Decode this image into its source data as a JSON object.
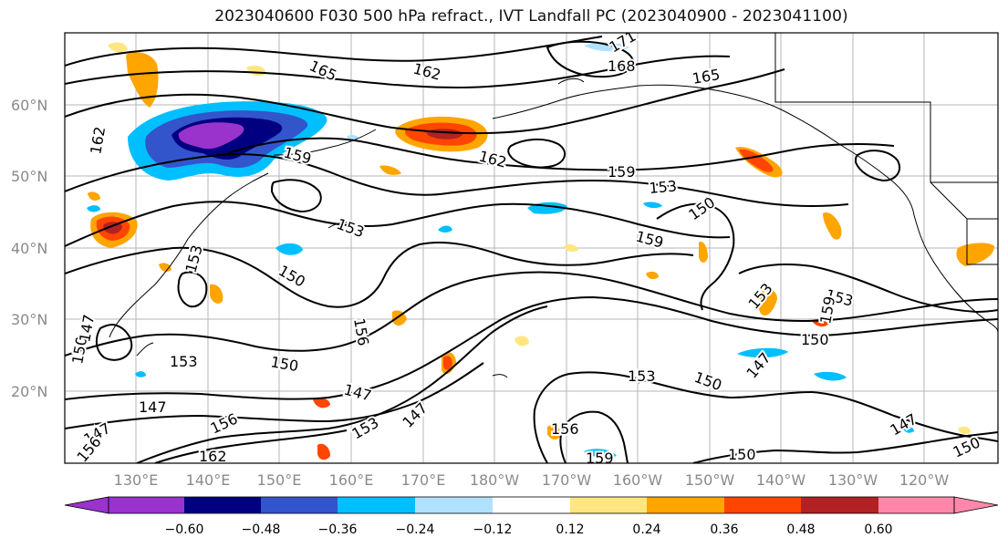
{
  "title": "2023040600 F030 500 hPa refract., IVT Landfall PC (2023040900 - 2023041100)",
  "lat_labels": [
    "60°N",
    "50°N",
    "40°N",
    "30°N",
    "20°N"
  ],
  "lon_labels": [
    "130°E",
    "140°E",
    "150°E",
    "160°E",
    "170°E",
    "180°W",
    "170°W",
    "160°W",
    "150°W",
    "140°W",
    "130°W",
    "120°W"
  ],
  "contour_labels": [
    "165",
    "162",
    "165",
    "159",
    "162",
    "159",
    "162",
    "153",
    "150",
    "153",
    "159",
    "153",
    "150",
    "156",
    "153",
    "150",
    "153",
    "150",
    "147",
    "147",
    "153",
    "147",
    "156",
    "147",
    "153",
    "150",
    "153",
    "159",
    "150",
    "147",
    "156",
    "159",
    "150",
    "147",
    "150",
    "162",
    "156",
    "147",
    "171",
    "168"
  ],
  "colorbar": {
    "ticks": [
      "−0.60",
      "−0.48",
      "−0.36",
      "−0.24",
      "−0.12",
      "0.12",
      "0.24",
      "0.36",
      "0.48",
      "0.60"
    ],
    "colors": [
      "#9933cc",
      "#000080",
      "#3355cc",
      "#00bfff",
      "#b0e2ff",
      "#ffffff",
      "#ffe680",
      "#ffa500",
      "#ff4500",
      "#b22222",
      "#ff88aa"
    ]
  }
}
